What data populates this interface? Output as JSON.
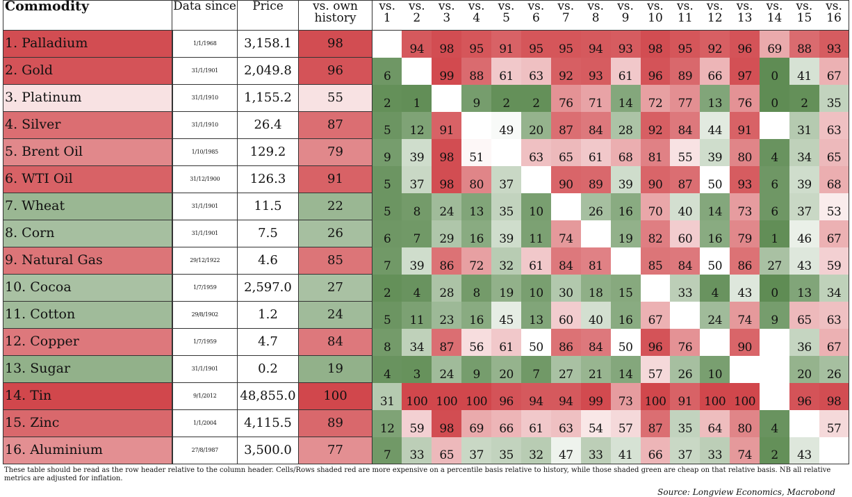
{
  "headers": {
    "commodity": "Commodity",
    "data_since": "Data since",
    "price": "Price",
    "own_history": "vs. own history",
    "vs_label": "vs."
  },
  "colors": {
    "scale_high": "#d1474c",
    "scale_mid": "#ffffff",
    "scale_low": "#5f8c54"
  },
  "rows": [
    {
      "name": "1. Palladium",
      "since": "1/1/1968",
      "price": "3,158.1",
      "own": 98,
      "rel": [
        null,
        94,
        98,
        95,
        91,
        95,
        95,
        94,
        93,
        98,
        95,
        92,
        96,
        69,
        88,
        93
      ]
    },
    {
      "name": "2. Gold",
      "since": "31/1/1901",
      "price": "2,049.8",
      "own": 96,
      "rel": [
        6,
        null,
        99,
        88,
        61,
        63,
        92,
        93,
        61,
        96,
        89,
        66,
        97,
        0,
        41,
        67
      ]
    },
    {
      "name": "3. Platinum",
      "since": "31/1/1910",
      "price": "1,155.2",
      "own": 55,
      "rel": [
        2,
        1,
        null,
        9,
        2,
        2,
        76,
        71,
        14,
        72,
        77,
        13,
        76,
        0,
        2,
        35
      ]
    },
    {
      "name": "4. Silver",
      "since": "31/1/1910",
      "price": "26.4",
      "own": 87,
      "rel": [
        5,
        12,
        91,
        null,
        49,
        20,
        87,
        84,
        28,
        92,
        84,
        44,
        91,
        null,
        31,
        63
      ]
    },
    {
      "name": "5. Brent Oil",
      "since": "1/10/1985",
      "price": "129.2",
      "own": 79,
      "rel": [
        9,
        39,
        98,
        51,
        null,
        63,
        65,
        61,
        68,
        81,
        55,
        39,
        80,
        4,
        34,
        65
      ]
    },
    {
      "name": "6. WTI Oil",
      "since": "31/12/1900",
      "price": "126.3",
      "own": 91,
      "rel": [
        5,
        37,
        98,
        80,
        37,
        null,
        90,
        89,
        39,
        90,
        87,
        50,
        93,
        6,
        39,
        68
      ]
    },
    {
      "name": "7. Wheat",
      "since": "31/1/1901",
      "price": "11.5",
      "own": 22,
      "rel": [
        5,
        8,
        24,
        13,
        35,
        10,
        null,
        26,
        16,
        70,
        40,
        14,
        73,
        6,
        37,
        53
      ]
    },
    {
      "name": "8. Corn",
      "since": "31/1/1901",
      "price": "7.5",
      "own": 26,
      "rel": [
        6,
        7,
        29,
        16,
        39,
        11,
        74,
        null,
        19,
        82,
        60,
        16,
        79,
        1,
        46,
        67
      ]
    },
    {
      "name": "9. Natural Gas",
      "since": "29/12/1922",
      "price": "4.6",
      "own": 85,
      "rel": [
        7,
        39,
        86,
        72,
        32,
        61,
        84,
        81,
        null,
        85,
        84,
        50,
        86,
        27,
        43,
        59
      ]
    },
    {
      "name": "10. Cocoa",
      "since": "1/7/1959",
      "price": "2,597.0",
      "own": 27,
      "rel": [
        2,
        4,
        28,
        8,
        19,
        10,
        30,
        18,
        15,
        null,
        33,
        4,
        43,
        0,
        13,
        34
      ]
    },
    {
      "name": "11. Cotton",
      "since": "29/8/1902",
      "price": "1.2",
      "own": 24,
      "rel": [
        5,
        11,
        23,
        16,
        45,
        13,
        60,
        40,
        16,
        67,
        null,
        24,
        74,
        9,
        65,
        63
      ]
    },
    {
      "name": "12. Copper",
      "since": "1/7/1959",
      "price": "4.7",
      "own": 84,
      "rel": [
        8,
        34,
        87,
        56,
        61,
        50,
        86,
        84,
        50,
        96,
        76,
        null,
        90,
        null,
        36,
        67
      ]
    },
    {
      "name": "13. Sugar",
      "since": "31/1/1901",
      "price": "0.2",
      "own": 19,
      "rel": [
        4,
        3,
        24,
        9,
        20,
        7,
        27,
        21,
        14,
        57,
        26,
        10,
        null,
        null,
        20,
        26
      ]
    },
    {
      "name": "14. Tin",
      "since": "9/1/2012",
      "price": "48,855.0",
      "own": 100,
      "rel": [
        31,
        100,
        100,
        100,
        96,
        94,
        94,
        99,
        73,
        100,
        91,
        100,
        100,
        null,
        96,
        98
      ]
    },
    {
      "name": "15. Zinc",
      "since": "1/1/2004",
      "price": "4,115.5",
      "own": 89,
      "rel": [
        12,
        59,
        98,
        69,
        66,
        61,
        63,
        54,
        57,
        87,
        35,
        64,
        80,
        4,
        null,
        57
      ]
    },
    {
      "name": "16. Aluminium",
      "since": "27/8/1987",
      "price": "3,500.0",
      "own": 77,
      "rel": [
        7,
        33,
        65,
        37,
        35,
        32,
        47,
        33,
        41,
        66,
        37,
        33,
        74,
        2,
        43,
        null
      ]
    }
  ],
  "note": "These table should be read as the row header relative to the column header. Cells/Rows shaded red are more expensive on a percentile basis relative to history, while those shaded green are cheap on that relative basis. NB all relative metrics are adjusted for inflation.",
  "source": "Source: Longview Economics, Macrobond"
}
